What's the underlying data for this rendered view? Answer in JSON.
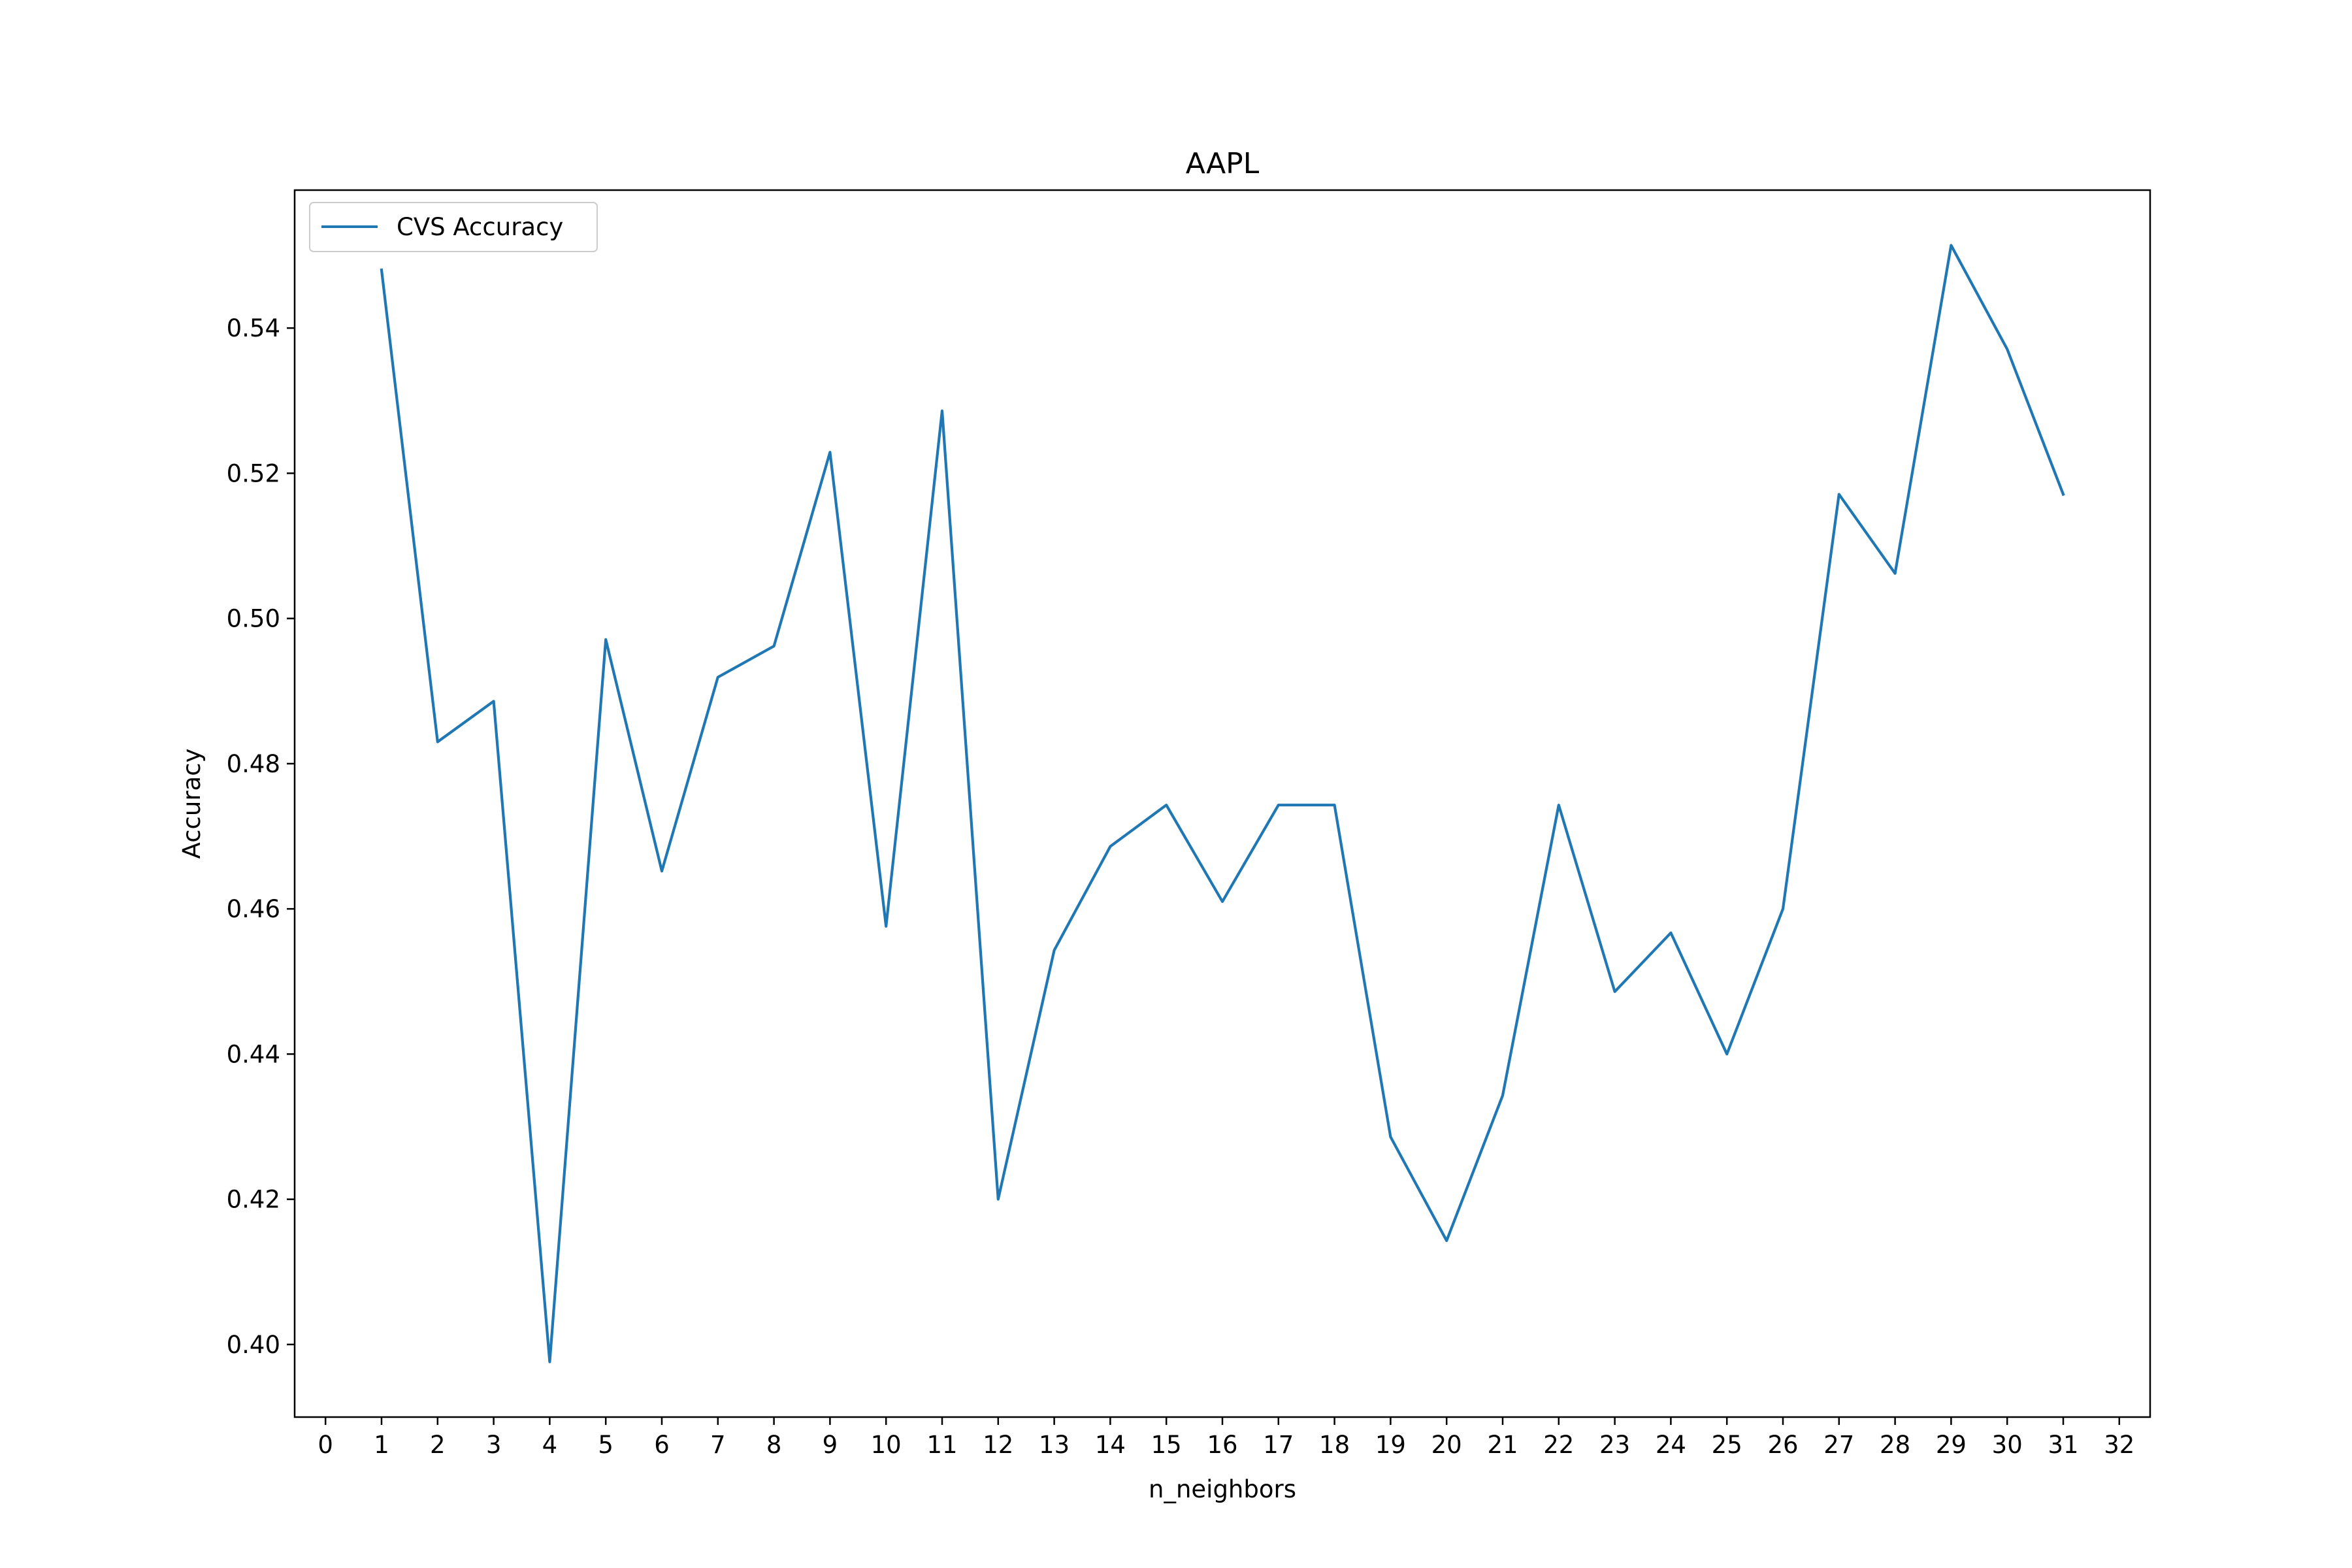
{
  "chart_data": {
    "type": "line",
    "title": "AAPL",
    "xlabel": "n_neighbors",
    "ylabel": "Accuracy",
    "xlim": [
      -0.55,
      32.55
    ],
    "ylim": [
      0.39,
      0.559
    ],
    "xticks": [
      0,
      1,
      2,
      3,
      4,
      5,
      6,
      7,
      8,
      9,
      10,
      11,
      12,
      13,
      14,
      15,
      16,
      17,
      18,
      19,
      20,
      21,
      22,
      23,
      24,
      25,
      26,
      27,
      28,
      29,
      30,
      31,
      32
    ],
    "yticks": [
      0.4,
      0.42,
      0.44,
      0.46,
      0.48,
      0.5,
      0.52,
      0.54
    ],
    "ytick_labels": [
      "0.40",
      "0.42",
      "0.44",
      "0.46",
      "0.48",
      "0.50",
      "0.52",
      "0.54"
    ],
    "grid": false,
    "legend_position": "upper-left",
    "series": [
      {
        "name": "CVS Accuracy",
        "color": "#1f77b4",
        "x": [
          1,
          2,
          3,
          4,
          5,
          6,
          7,
          8,
          9,
          10,
          11,
          12,
          13,
          14,
          15,
          16,
          17,
          18,
          19,
          20,
          21,
          22,
          23,
          24,
          25,
          26,
          27,
          28,
          29,
          30,
          31
        ],
        "y": [
          0.548,
          0.483,
          0.4886,
          0.3976,
          0.4971,
          0.4652,
          0.4919,
          0.4962,
          0.5229,
          0.4576,
          0.5286,
          0.42,
          0.4543,
          0.4686,
          0.4743,
          0.461,
          0.4743,
          0.4743,
          0.4286,
          0.4143,
          0.4343,
          0.4743,
          0.4486,
          0.4567,
          0.44,
          0.46,
          0.5171,
          0.5062,
          0.5514,
          0.5371,
          0.5171
        ]
      }
    ]
  }
}
